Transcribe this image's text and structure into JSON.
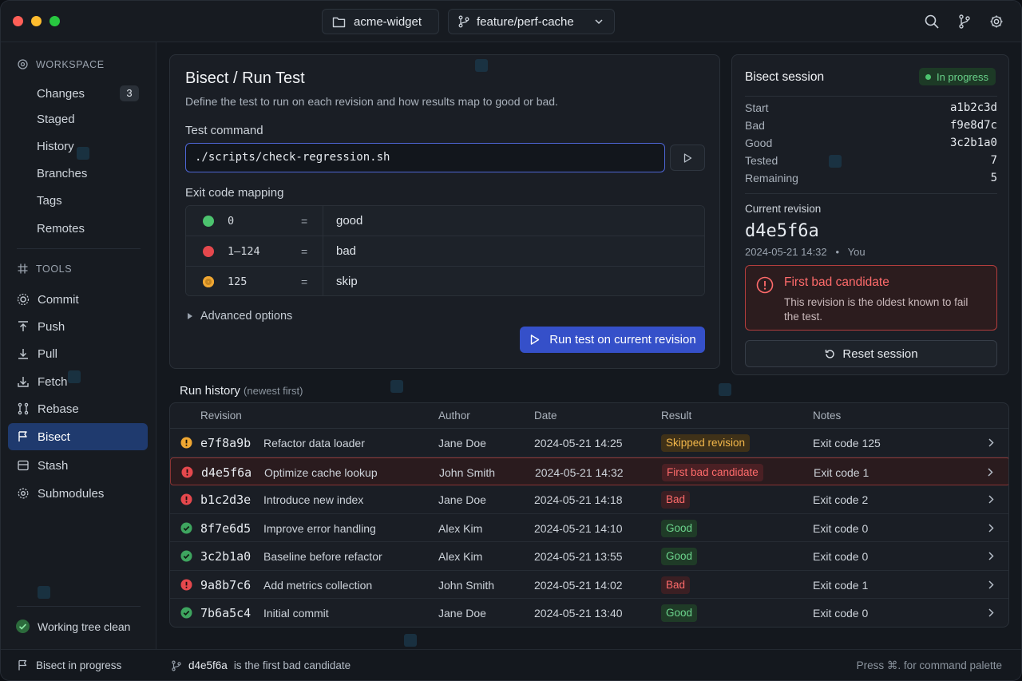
{
  "titlebar": {
    "repo": "acme-widget",
    "branch": "feature/perf-cache"
  },
  "sidebar": {
    "workspace_header": "WORKSPACE",
    "workspace_items": [
      {
        "label": "Changes",
        "count": "3"
      },
      {
        "label": "Staged"
      },
      {
        "label": "History"
      },
      {
        "label": "Branches"
      },
      {
        "label": "Tags"
      },
      {
        "label": "Remotes"
      }
    ],
    "tools_header": "TOOLS",
    "tools_items": [
      {
        "label": "Commit",
        "icon": "commit-icon"
      },
      {
        "label": "Push",
        "icon": "push-icon"
      },
      {
        "label": "Pull",
        "icon": "pull-icon"
      },
      {
        "label": "Fetch",
        "icon": "fetch-icon"
      },
      {
        "label": "Rebase",
        "icon": "rebase-icon"
      },
      {
        "label": "Bisect",
        "icon": "bisect-icon",
        "active": true
      },
      {
        "label": "Stash",
        "icon": "stash-icon"
      },
      {
        "label": "Submodules",
        "icon": "submodules-icon"
      }
    ],
    "working_tree": "Working tree clean"
  },
  "bisect": {
    "title": "Bisect / Run Test",
    "description": "Define the test to run on each revision and how results map to good or bad.",
    "test_command_label": "Test command",
    "test_command": "./scripts/check-regression.sh",
    "mapping_label": "Exit code mapping",
    "mapping": [
      {
        "code": "0",
        "eq": "=",
        "result": "good",
        "color": "#4cc36e"
      },
      {
        "code": "1–124",
        "eq": "=",
        "result": "bad",
        "color": "#e5484d"
      },
      {
        "code": "125",
        "eq": "=",
        "result": "skip",
        "color": "#f0a732"
      }
    ],
    "advanced_label": "Advanced options",
    "run_button": "Run test on current revision"
  },
  "session": {
    "title": "Bisect session",
    "status": "In progress",
    "stats": [
      {
        "k": "Start",
        "v": "a1b2c3d"
      },
      {
        "k": "Bad",
        "v": "f9e8d7c"
      },
      {
        "k": "Good",
        "v": "3c2b1a0"
      },
      {
        "k": "Tested",
        "v": "7"
      },
      {
        "k": "Remaining",
        "v": "5"
      }
    ],
    "current_label": "Current revision",
    "current_hash": "d4e5f6a",
    "current_date": "2024-05-21 14:32",
    "current_sep": "•",
    "current_author": "You",
    "alert_title": "First bad candidate",
    "alert_desc": "This revision is the oldest known to fail the test.",
    "reset_button": "Reset session"
  },
  "history": {
    "title": "Run history",
    "subtitle": "(newest first)",
    "columns": {
      "revision": "Revision",
      "author": "Author",
      "date": "Date",
      "result": "Result",
      "notes": "Notes"
    },
    "rows": [
      {
        "status": "skip",
        "hash": "e7f8a9b",
        "msg": "Refactor data loader",
        "author": "Jane Doe",
        "date": "2024-05-21 14:25",
        "result": "Skipped revision",
        "badge": "skip",
        "note": "Exit code 125"
      },
      {
        "status": "bad",
        "hash": "d4e5f6a",
        "msg": "Optimize cache lookup",
        "author": "John Smith",
        "date": "2024-05-21 14:32",
        "result": "First bad candidate",
        "badge": "first",
        "note": "Exit code 1",
        "highlight": true
      },
      {
        "status": "bad",
        "hash": "b1c2d3e",
        "msg": "Introduce new index",
        "author": "Jane Doe",
        "date": "2024-05-21 14:18",
        "result": "Bad",
        "badge": "bad",
        "note": "Exit code 2"
      },
      {
        "status": "good",
        "hash": "8f7e6d5",
        "msg": "Improve error handling",
        "author": "Alex Kim",
        "date": "2024-05-21 14:10",
        "result": "Good",
        "badge": "good",
        "note": "Exit code 0"
      },
      {
        "status": "good",
        "hash": "3c2b1a0",
        "msg": "Baseline before refactor",
        "author": "Alex Kim",
        "date": "2024-05-21 13:55",
        "result": "Good",
        "badge": "good",
        "note": "Exit code 0"
      },
      {
        "status": "bad",
        "hash": "9a8b7c6",
        "msg": "Add metrics collection",
        "author": "John Smith",
        "date": "2024-05-21 14:02",
        "result": "Bad",
        "badge": "bad",
        "note": "Exit code 1"
      },
      {
        "status": "good",
        "hash": "7b6a5c4",
        "msg": "Initial commit",
        "author": "Jane Doe",
        "date": "2024-05-21 13:40",
        "result": "Good",
        "badge": "good",
        "note": "Exit code 0"
      }
    ]
  },
  "statusbar": {
    "left": "Bisect in progress",
    "mid_hash": "d4e5f6a",
    "mid_text": "is the first bad candidate",
    "right": "Press ⌘. for command palette"
  },
  "colors": {
    "accent": "#3550c9",
    "good": "#4cc36e",
    "bad": "#e5484d",
    "skip": "#f0a732"
  }
}
